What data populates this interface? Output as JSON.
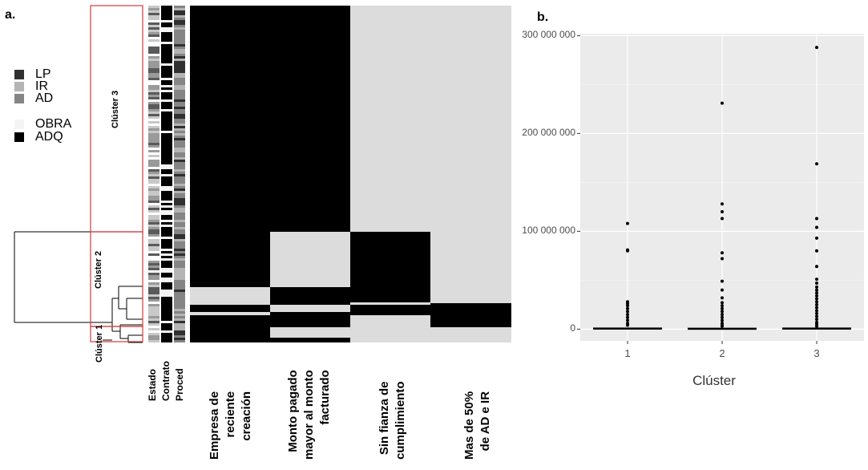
{
  "panel_a": {
    "label": "a.",
    "legend_proc": [
      {
        "label": "LP",
        "color": "#303030"
      },
      {
        "label": "IR",
        "color": "#b4b4b4"
      },
      {
        "label": "AD",
        "color": "#858585"
      }
    ],
    "legend_contract": [
      {
        "label": "OBRA",
        "color": "#f4f4f4"
      },
      {
        "label": "ADQ",
        "color": "#000000"
      }
    ],
    "clusters": [
      "Clúster 3",
      "Clúster 2",
      "Clúster 1"
    ],
    "side_columns": [
      "Estado",
      "Contrato",
      "Proced"
    ],
    "columns": [
      "Empresa de\nreciente\ncreación",
      "Monto pagado\nmayor al monto\nfacturado",
      "Sin fianza de\ncumplimiento",
      "Mas de 50%\nde AD e IR"
    ],
    "colors": {
      "present": "#000000",
      "absent": "#dcdcdc",
      "cluster_box": "#d43a3a"
    }
  },
  "chart_data": {
    "type": "boxplot",
    "panel_label": "b.",
    "title": "",
    "xlabel": "Clúster",
    "ylabel": "",
    "categories": [
      "1",
      "2",
      "3"
    ],
    "ylim": [
      -12000000,
      302000000
    ],
    "y_ticks": [
      0,
      100000000,
      200000000,
      300000000
    ],
    "y_tick_labels": [
      "0",
      "100 000 000",
      "200 000 000",
      "300 000 000"
    ],
    "boxes": [
      {
        "category": "1",
        "q1": 0,
        "median": 600000,
        "q3": 1200000
      },
      {
        "category": "2",
        "q1": 0,
        "median": 400000,
        "q3": 1000000
      },
      {
        "category": "3",
        "q1": 0,
        "median": 600000,
        "q3": 1200000
      }
    ],
    "outliers": [
      {
        "category": "1",
        "values": [
          108000000,
          81000000,
          80000000,
          28000000,
          26000000,
          24000000,
          21000000,
          18000000,
          15000000,
          12000000,
          9000000,
          6000000,
          4000000
        ]
      },
      {
        "category": "2",
        "values": [
          231000000,
          128000000,
          120000000,
          113000000,
          78000000,
          72000000,
          49000000,
          40000000,
          32000000,
          27000000,
          24000000,
          21000000,
          18000000,
          15000000,
          12000000,
          9000000,
          6000000,
          4000000,
          3000000
        ]
      },
      {
        "category": "3",
        "values": [
          288000000,
          169000000,
          113000000,
          104000000,
          93000000,
          80000000,
          64000000,
          51000000,
          47000000,
          43000000,
          40000000,
          37000000,
          34000000,
          31000000,
          28000000,
          25000000,
          22000000,
          19000000,
          16000000,
          13000000,
          10000000,
          7000000,
          5000000,
          3000000
        ]
      }
    ],
    "colors": {
      "panel_bg": "#ebebeb",
      "grid": "#ffffff",
      "point": "#000000"
    }
  }
}
